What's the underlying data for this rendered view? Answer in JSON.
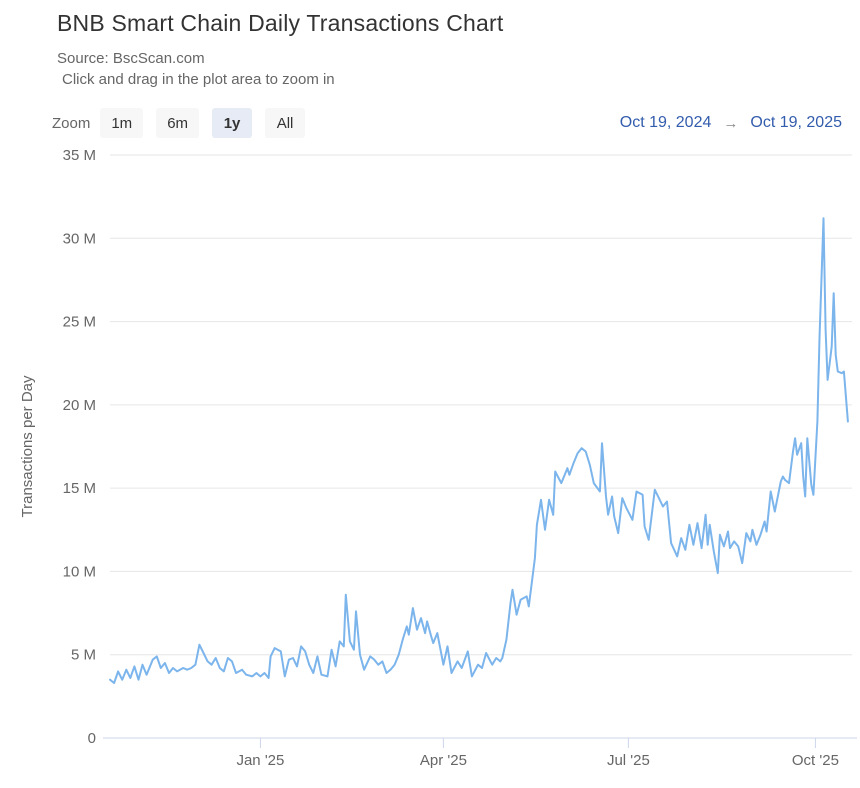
{
  "header": {
    "title": "BNB Smart Chain Daily Transactions Chart",
    "source": "Source: BscScan.com",
    "hint": "Click and drag in the plot area to zoom in"
  },
  "controls": {
    "zoom_label": "Zoom",
    "buttons": [
      {
        "label": "1m",
        "selected": false
      },
      {
        "label": "6m",
        "selected": false
      },
      {
        "label": "1y",
        "selected": true
      },
      {
        "label": "All",
        "selected": false
      }
    ],
    "range": {
      "from": "Oct 19, 2024",
      "arrow": "→",
      "to": "Oct 19, 2025"
    }
  },
  "chart_data": {
    "type": "line",
    "title": "BNB Smart Chain Daily Transactions Chart",
    "xlabel": "",
    "ylabel": "Transactions per Day",
    "ylim": [
      0,
      35
    ],
    "y_unit": "M",
    "grid": true,
    "legend": "none",
    "line_color": "#7cb5ec",
    "grid_color": "#e6e6e6",
    "axis_line_color": "#ccd6eb",
    "label_color": "#666666",
    "x_range_days": 365,
    "x_start_date": "Oct 19, 2024",
    "x_end_date": "Oct 19, 2025",
    "y_ticks": [
      {
        "value": 0,
        "label": "0"
      },
      {
        "value": 5,
        "label": "5 M"
      },
      {
        "value": 10,
        "label": "10 M"
      },
      {
        "value": 15,
        "label": "15 M"
      },
      {
        "value": 20,
        "label": "20 M"
      },
      {
        "value": 25,
        "label": "25 M"
      },
      {
        "value": 30,
        "label": "30 M"
      },
      {
        "value": 35,
        "label": "35 M"
      }
    ],
    "x_ticks": [
      {
        "day": 74,
        "label": "Jan '25"
      },
      {
        "day": 164,
        "label": "Apr '25"
      },
      {
        "day": 255,
        "label": "Jul '25"
      },
      {
        "day": 347,
        "label": "Oct '25"
      }
    ],
    "series": [
      {
        "name": "Transactions per Day (millions)",
        "points": [
          [
            0,
            3.5
          ],
          [
            2,
            3.3
          ],
          [
            4,
            4.0
          ],
          [
            6,
            3.5
          ],
          [
            8,
            4.1
          ],
          [
            10,
            3.6
          ],
          [
            12,
            4.3
          ],
          [
            14,
            3.5
          ],
          [
            16,
            4.4
          ],
          [
            18,
            3.8
          ],
          [
            21,
            4.7
          ],
          [
            23,
            4.9
          ],
          [
            25,
            4.2
          ],
          [
            27,
            4.5
          ],
          [
            29,
            3.9
          ],
          [
            31,
            4.2
          ],
          [
            33,
            4.0
          ],
          [
            36,
            4.2
          ],
          [
            38,
            4.1
          ],
          [
            40,
            4.2
          ],
          [
            42,
            4.4
          ],
          [
            44,
            5.6
          ],
          [
            46,
            5.1
          ],
          [
            48,
            4.6
          ],
          [
            50,
            4.4
          ],
          [
            52,
            4.8
          ],
          [
            54,
            4.2
          ],
          [
            56,
            4.0
          ],
          [
            58,
            4.8
          ],
          [
            60,
            4.6
          ],
          [
            62,
            3.9
          ],
          [
            65,
            4.1
          ],
          [
            67,
            3.8
          ],
          [
            70,
            3.7
          ],
          [
            72,
            3.9
          ],
          [
            74,
            3.7
          ],
          [
            76,
            3.9
          ],
          [
            78,
            3.6
          ],
          [
            79,
            4.9
          ],
          [
            81,
            5.4
          ],
          [
            84,
            5.2
          ],
          [
            86,
            3.7
          ],
          [
            88,
            4.7
          ],
          [
            90,
            4.8
          ],
          [
            92,
            4.3
          ],
          [
            94,
            5.5
          ],
          [
            96,
            5.2
          ],
          [
            98,
            4.4
          ],
          [
            100,
            3.9
          ],
          [
            102,
            4.9
          ],
          [
            104,
            3.8
          ],
          [
            107,
            3.7
          ],
          [
            109,
            5.3
          ],
          [
            111,
            4.3
          ],
          [
            113,
            5.8
          ],
          [
            115,
            5.5
          ],
          [
            116,
            8.6
          ],
          [
            118,
            5.8
          ],
          [
            120,
            5.3
          ],
          [
            121,
            7.6
          ],
          [
            123,
            5.0
          ],
          [
            125,
            4.1
          ],
          [
            128,
            4.9
          ],
          [
            130,
            4.7
          ],
          [
            132,
            4.4
          ],
          [
            134,
            4.6
          ],
          [
            136,
            3.9
          ],
          [
            138,
            4.1
          ],
          [
            140,
            4.4
          ],
          [
            142,
            5.0
          ],
          [
            144,
            5.9
          ],
          [
            146,
            6.7
          ],
          [
            147,
            6.2
          ],
          [
            149,
            7.8
          ],
          [
            151,
            6.5
          ],
          [
            153,
            7.2
          ],
          [
            155,
            6.3
          ],
          [
            156,
            7.0
          ],
          [
            158,
            6.1
          ],
          [
            159,
            5.7
          ],
          [
            161,
            6.3
          ],
          [
            164,
            4.4
          ],
          [
            166,
            5.5
          ],
          [
            168,
            3.9
          ],
          [
            171,
            4.6
          ],
          [
            173,
            4.2
          ],
          [
            176,
            5.2
          ],
          [
            178,
            3.7
          ],
          [
            181,
            4.4
          ],
          [
            183,
            4.2
          ],
          [
            185,
            5.1
          ],
          [
            188,
            4.4
          ],
          [
            190,
            4.8
          ],
          [
            192,
            4.6
          ],
          [
            193,
            4.8
          ],
          [
            195,
            5.9
          ],
          [
            197,
            8.1
          ],
          [
            198,
            8.9
          ],
          [
            200,
            7.4
          ],
          [
            202,
            8.3
          ],
          [
            205,
            8.5
          ],
          [
            206,
            7.9
          ],
          [
            208,
            9.8
          ],
          [
            209,
            10.8
          ],
          [
            210,
            12.8
          ],
          [
            212,
            14.3
          ],
          [
            214,
            12.5
          ],
          [
            216,
            14.3
          ],
          [
            218,
            13.4
          ],
          [
            219,
            16.0
          ],
          [
            222,
            15.3
          ],
          [
            225,
            16.2
          ],
          [
            226,
            15.8
          ],
          [
            228,
            16.5
          ],
          [
            230,
            17.1
          ],
          [
            232,
            17.4
          ],
          [
            234,
            17.2
          ],
          [
            236,
            16.4
          ],
          [
            238,
            15.3
          ],
          [
            241,
            14.8
          ],
          [
            242,
            17.7
          ],
          [
            244,
            14.5
          ],
          [
            245,
            13.4
          ],
          [
            247,
            14.5
          ],
          [
            248,
            13.3
          ],
          [
            250,
            12.3
          ],
          [
            252,
            14.4
          ],
          [
            254,
            13.8
          ],
          [
            257,
            13.1
          ],
          [
            259,
            14.8
          ],
          [
            262,
            14.6
          ],
          [
            263,
            12.7
          ],
          [
            265,
            11.9
          ],
          [
            268,
            14.9
          ],
          [
            270,
            14.4
          ],
          [
            272,
            13.9
          ],
          [
            274,
            14.2
          ],
          [
            276,
            11.7
          ],
          [
            279,
            10.9
          ],
          [
            281,
            12.0
          ],
          [
            283,
            11.3
          ],
          [
            285,
            12.8
          ],
          [
            287,
            11.6
          ],
          [
            289,
            12.9
          ],
          [
            291,
            11.4
          ],
          [
            293,
            13.4
          ],
          [
            294,
            11.6
          ],
          [
            295,
            12.8
          ],
          [
            297,
            11.2
          ],
          [
            299,
            9.9
          ],
          [
            300,
            12.2
          ],
          [
            302,
            11.5
          ],
          [
            304,
            12.4
          ],
          [
            305,
            11.4
          ],
          [
            307,
            11.8
          ],
          [
            309,
            11.5
          ],
          [
            311,
            10.5
          ],
          [
            313,
            12.3
          ],
          [
            315,
            11.8
          ],
          [
            316,
            12.5
          ],
          [
            318,
            11.6
          ],
          [
            320,
            12.2
          ],
          [
            322,
            13.0
          ],
          [
            323,
            12.4
          ],
          [
            325,
            14.8
          ],
          [
            327,
            13.6
          ],
          [
            328,
            14.2
          ],
          [
            330,
            15.4
          ],
          [
            331,
            15.7
          ],
          [
            332,
            15.5
          ],
          [
            334,
            15.3
          ],
          [
            336,
            17.2
          ],
          [
            337,
            18.0
          ],
          [
            338,
            17.0
          ],
          [
            340,
            17.7
          ],
          [
            341,
            15.7
          ],
          [
            342,
            14.5
          ],
          [
            343,
            18.0
          ],
          [
            345,
            15.2
          ],
          [
            346,
            14.6
          ],
          [
            348,
            19.0
          ],
          [
            349,
            24.0
          ],
          [
            351,
            31.2
          ],
          [
            352,
            24.5
          ],
          [
            353,
            21.5
          ],
          [
            355,
            23.5
          ],
          [
            356,
            26.7
          ],
          [
            357,
            23.0
          ],
          [
            358,
            22.0
          ],
          [
            360,
            21.9
          ],
          [
            361,
            22.0
          ],
          [
            362,
            20.5
          ],
          [
            363,
            19.0
          ]
        ]
      }
    ]
  }
}
